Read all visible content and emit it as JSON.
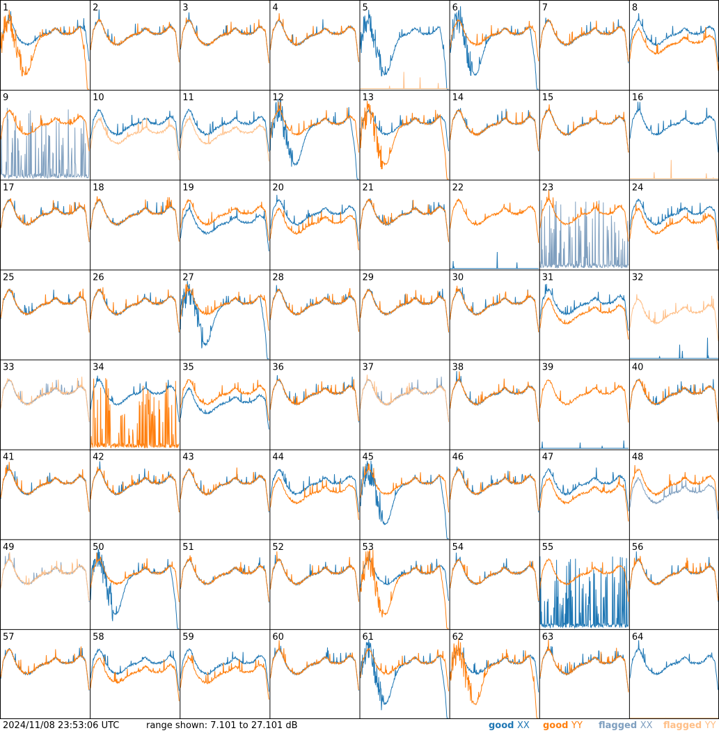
{
  "footer": {
    "timestamp": "2024/11/08 23:53:06 UTC",
    "range_text": "range shown: 7.101 to 27.101 dB"
  },
  "legend": [
    {
      "label_a": "good",
      "label_b": "XX",
      "color": "#1f77b4"
    },
    {
      "label_a": "good",
      "label_b": "YY",
      "color": "#ff7f0e"
    },
    {
      "label_a": "flagged",
      "label_b": "XX",
      "color": "#7f9fbf"
    },
    {
      "label_a": "flagged",
      "label_b": "YY",
      "color": "#ffbf87"
    }
  ],
  "colors": {
    "good_xx": "#1f77b4",
    "good_yy": "#ff7f0e",
    "flagged_xx": "#7f9fbf",
    "flagged_yy": "#ffbf87"
  },
  "chart_data": {
    "type": "line",
    "layout": "8x8 small multiples, tile number top-left",
    "ylim": [
      7.101,
      27.101
    ],
    "y_unit": "dB",
    "series_names": [
      "good XX",
      "good YY",
      "flagged XX",
      "flagged YY"
    ],
    "tiles": [
      {
        "id": "1",
        "xx": "good",
        "yy": "good",
        "xx_shape": "normal",
        "yy_shape": "dip"
      },
      {
        "id": "2",
        "xx": "good",
        "yy": "good",
        "xx_shape": "normal",
        "yy_shape": "normal"
      },
      {
        "id": "3",
        "xx": "good",
        "yy": "good",
        "xx_shape": "normal",
        "yy_shape": "normal"
      },
      {
        "id": "4",
        "xx": "good",
        "yy": "good",
        "xx_shape": "normal",
        "yy_shape": "normal"
      },
      {
        "id": "5",
        "xx": "good",
        "yy": "flagged",
        "xx_shape": "dip",
        "yy_shape": "flat"
      },
      {
        "id": "6",
        "xx": "good",
        "yy": "good",
        "xx_shape": "dip",
        "yy_shape": "normal"
      },
      {
        "id": "7",
        "xx": "good",
        "yy": "good",
        "xx_shape": "normal",
        "yy_shape": "normal"
      },
      {
        "id": "8",
        "xx": "good",
        "yy": "good",
        "xx_shape": "normal",
        "yy_shape": "low"
      },
      {
        "id": "9",
        "xx": "flagged",
        "yy": "good",
        "xx_shape": "spiky",
        "yy_shape": "normal"
      },
      {
        "id": "10",
        "xx": "good",
        "yy": "flagged",
        "xx_shape": "normal",
        "yy_shape": "low"
      },
      {
        "id": "11",
        "xx": "good",
        "yy": "flagged",
        "xx_shape": "normal",
        "yy_shape": "low"
      },
      {
        "id": "12",
        "xx": "good",
        "yy": "good",
        "xx_shape": "dip",
        "yy_shape": "normal"
      },
      {
        "id": "13",
        "xx": "good",
        "yy": "good",
        "xx_shape": "normal",
        "yy_shape": "dip"
      },
      {
        "id": "14",
        "xx": "good",
        "yy": "good",
        "xx_shape": "normal",
        "yy_shape": "normal"
      },
      {
        "id": "15",
        "xx": "good",
        "yy": "good",
        "xx_shape": "normal",
        "yy_shape": "normal"
      },
      {
        "id": "16",
        "xx": "good",
        "yy": "flagged",
        "xx_shape": "normal",
        "yy_shape": "flat"
      },
      {
        "id": "17",
        "xx": "good",
        "yy": "good",
        "xx_shape": "normal",
        "yy_shape": "normal"
      },
      {
        "id": "18",
        "xx": "good",
        "yy": "good",
        "xx_shape": "normal",
        "yy_shape": "normal"
      },
      {
        "id": "19",
        "xx": "good",
        "yy": "good",
        "xx_shape": "low",
        "yy_shape": "normal"
      },
      {
        "id": "20",
        "xx": "good",
        "yy": "good",
        "xx_shape": "normal",
        "yy_shape": "low"
      },
      {
        "id": "21",
        "xx": "good",
        "yy": "good",
        "xx_shape": "normal",
        "yy_shape": "normal"
      },
      {
        "id": "22",
        "xx": "good",
        "yy": "good",
        "xx_shape": "flat",
        "yy_shape": "normal"
      },
      {
        "id": "23",
        "xx": "flagged",
        "yy": "good",
        "xx_shape": "spiky",
        "yy_shape": "normal"
      },
      {
        "id": "24",
        "xx": "good",
        "yy": "good",
        "xx_shape": "normal",
        "yy_shape": "low"
      },
      {
        "id": "25",
        "xx": "good",
        "yy": "good",
        "xx_shape": "normal",
        "yy_shape": "normal"
      },
      {
        "id": "26",
        "xx": "good",
        "yy": "good",
        "xx_shape": "normal",
        "yy_shape": "normal"
      },
      {
        "id": "27",
        "xx": "good",
        "yy": "good",
        "xx_shape": "dip",
        "yy_shape": "normal"
      },
      {
        "id": "28",
        "xx": "good",
        "yy": "good",
        "xx_shape": "normal",
        "yy_shape": "normal"
      },
      {
        "id": "29",
        "xx": "good",
        "yy": "good",
        "xx_shape": "normal",
        "yy_shape": "normal"
      },
      {
        "id": "30",
        "xx": "good",
        "yy": "good",
        "xx_shape": "normal",
        "yy_shape": "normal"
      },
      {
        "id": "31",
        "xx": "good",
        "yy": "good",
        "xx_shape": "normal",
        "yy_shape": "low"
      },
      {
        "id": "32",
        "xx": "good",
        "yy": "flagged",
        "xx_shape": "flat",
        "yy_shape": "low"
      },
      {
        "id": "33",
        "xx": "flagged",
        "yy": "flagged",
        "xx_shape": "normal",
        "yy_shape": "normal"
      },
      {
        "id": "34",
        "xx": "good",
        "yy": "good",
        "xx_shape": "normal",
        "yy_shape": "spiky"
      },
      {
        "id": "35",
        "xx": "good",
        "yy": "good",
        "xx_shape": "low",
        "yy_shape": "normal"
      },
      {
        "id": "36",
        "xx": "good",
        "yy": "good",
        "xx_shape": "normal",
        "yy_shape": "normal"
      },
      {
        "id": "37",
        "xx": "flagged",
        "yy": "flagged",
        "xx_shape": "normal",
        "yy_shape": "normal"
      },
      {
        "id": "38",
        "xx": "good",
        "yy": "good",
        "xx_shape": "normal",
        "yy_shape": "normal"
      },
      {
        "id": "39",
        "xx": "good",
        "yy": "good",
        "xx_shape": "flat",
        "yy_shape": "normal"
      },
      {
        "id": "40",
        "xx": "good",
        "yy": "good",
        "xx_shape": "normal",
        "yy_shape": "normal"
      },
      {
        "id": "41",
        "xx": "good",
        "yy": "good",
        "xx_shape": "normal",
        "yy_shape": "normal"
      },
      {
        "id": "42",
        "xx": "good",
        "yy": "good",
        "xx_shape": "normal",
        "yy_shape": "normal"
      },
      {
        "id": "43",
        "xx": "good",
        "yy": "good",
        "xx_shape": "normal",
        "yy_shape": "normal"
      },
      {
        "id": "44",
        "xx": "good",
        "yy": "good",
        "xx_shape": "normal",
        "yy_shape": "low"
      },
      {
        "id": "45",
        "xx": "good",
        "yy": "good",
        "xx_shape": "dip",
        "yy_shape": "normal"
      },
      {
        "id": "46",
        "xx": "good",
        "yy": "good",
        "xx_shape": "normal",
        "yy_shape": "normal"
      },
      {
        "id": "47",
        "xx": "good",
        "yy": "good",
        "xx_shape": "normal",
        "yy_shape": "low"
      },
      {
        "id": "48",
        "xx": "flagged",
        "yy": "good",
        "xx_shape": "low",
        "yy_shape": "normal"
      },
      {
        "id": "49",
        "xx": "flagged",
        "yy": "flagged",
        "xx_shape": "normal",
        "yy_shape": "normal"
      },
      {
        "id": "50",
        "xx": "good",
        "yy": "good",
        "xx_shape": "dip",
        "yy_shape": "normal"
      },
      {
        "id": "51",
        "xx": "good",
        "yy": "good",
        "xx_shape": "normal",
        "yy_shape": "normal"
      },
      {
        "id": "52",
        "xx": "good",
        "yy": "good",
        "xx_shape": "normal",
        "yy_shape": "normal"
      },
      {
        "id": "53",
        "xx": "good",
        "yy": "good",
        "xx_shape": "normal",
        "yy_shape": "dip"
      },
      {
        "id": "54",
        "xx": "good",
        "yy": "good",
        "xx_shape": "normal",
        "yy_shape": "normal"
      },
      {
        "id": "55",
        "xx": "good",
        "yy": "good",
        "xx_shape": "spiky",
        "yy_shape": "normal"
      },
      {
        "id": "56",
        "xx": "good",
        "yy": "good",
        "xx_shape": "normal",
        "yy_shape": "normal"
      },
      {
        "id": "57",
        "xx": "good",
        "yy": "good",
        "xx_shape": "normal",
        "yy_shape": "normal"
      },
      {
        "id": "58",
        "xx": "good",
        "yy": "good",
        "xx_shape": "normal",
        "yy_shape": "low"
      },
      {
        "id": "59",
        "xx": "good",
        "yy": "good",
        "xx_shape": "normal",
        "yy_shape": "low"
      },
      {
        "id": "60",
        "xx": "good",
        "yy": "good",
        "xx_shape": "normal",
        "yy_shape": "normal"
      },
      {
        "id": "61",
        "xx": "good",
        "yy": "good",
        "xx_shape": "dip",
        "yy_shape": "normal"
      },
      {
        "id": "62",
        "xx": "good",
        "yy": "good",
        "xx_shape": "normal",
        "yy_shape": "dip"
      },
      {
        "id": "63",
        "xx": "good",
        "yy": "good",
        "xx_shape": "normal",
        "yy_shape": "normal"
      },
      {
        "id": "64",
        "xx": "good",
        "yy": "flagged",
        "xx_shape": "normal",
        "yy_shape": "flat"
      }
    ]
  }
}
